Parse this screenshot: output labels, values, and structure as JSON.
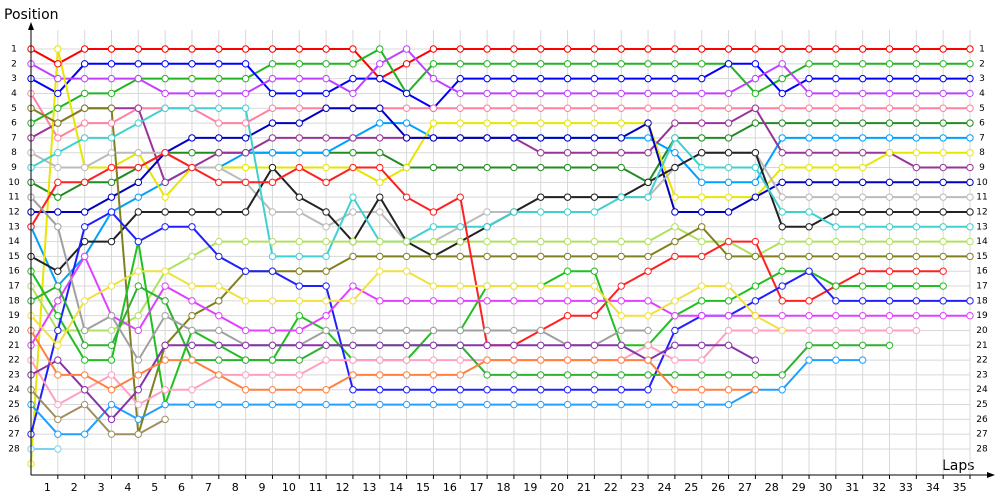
{
  "chart_data": {
    "type": "line",
    "xlabel": "Laps",
    "ylabel": "Position",
    "grid": true,
    "invert_y": true,
    "x": [
      0,
      1,
      2,
      3,
      4,
      5,
      6,
      7,
      8,
      9,
      10,
      11,
      12,
      13,
      14,
      15,
      16,
      17,
      18,
      19,
      20,
      21,
      22,
      23,
      24,
      25,
      26,
      27,
      28,
      29,
      30,
      31,
      32,
      33,
      34,
      35
    ],
    "xlim": [
      0,
      35
    ],
    "xticks": [
      1,
      2,
      3,
      4,
      5,
      6,
      7,
      8,
      9,
      10,
      11,
      12,
      13,
      14,
      15,
      16,
      17,
      18,
      19,
      20,
      21,
      22,
      23,
      24,
      25,
      26,
      27,
      28,
      29,
      30,
      31,
      32,
      33,
      34,
      35
    ],
    "ylim": [
      0,
      29.7
    ],
    "yticks": [
      1,
      2,
      3,
      4,
      5,
      6,
      7,
      8,
      9,
      10,
      11,
      12,
      13,
      14,
      15,
      16,
      17,
      18,
      19,
      20,
      21,
      22,
      23,
      24,
      25,
      26,
      27,
      28
    ],
    "series": [
      {
        "color": "#ff0000",
        "values": [
          1,
          2,
          1,
          1,
          1,
          1,
          1,
          1,
          1,
          1,
          1,
          1,
          1,
          3,
          2,
          1,
          1,
          1,
          1,
          1,
          1,
          1,
          1,
          1,
          1,
          1,
          1,
          1,
          1,
          1,
          1,
          1,
          1,
          1,
          1,
          1
        ]
      },
      {
        "color": "#22b422",
        "values": [
          6,
          5,
          4,
          4,
          3,
          3,
          3,
          3,
          3,
          2,
          2,
          2,
          2,
          1,
          4,
          2,
          2,
          2,
          2,
          2,
          2,
          2,
          2,
          2,
          2,
          2,
          2,
          4,
          3,
          2,
          2,
          2,
          2,
          2,
          2,
          2
        ]
      },
      {
        "color": "#0000ff",
        "values": [
          3,
          4,
          2,
          2,
          2,
          2,
          2,
          2,
          2,
          4,
          4,
          4,
          3,
          3,
          4,
          5,
          3,
          3,
          3,
          3,
          3,
          3,
          3,
          3,
          3,
          3,
          2,
          2,
          4,
          3,
          3,
          3,
          3,
          3,
          3,
          3
        ]
      },
      {
        "color": "#c040ff",
        "values": [
          2,
          3,
          3,
          3,
          3,
          4,
          4,
          4,
          4,
          3,
          3,
          3,
          4,
          2,
          1,
          3,
          4,
          4,
          4,
          4,
          4,
          4,
          4,
          4,
          4,
          4,
          4,
          3,
          2,
          4,
          4,
          4,
          4,
          4,
          4,
          4
        ]
      },
      {
        "color": "#ff80a0",
        "values": [
          4,
          7,
          6,
          6,
          5,
          5,
          5,
          6,
          6,
          5,
          5,
          5,
          5,
          5,
          5,
          5,
          5,
          5,
          5,
          5,
          5,
          5,
          5,
          5,
          5,
          5,
          5,
          5,
          5,
          5,
          5,
          5,
          5,
          5,
          5,
          5
        ]
      },
      {
        "color": "#228b22",
        "values": [
          10,
          11,
          10,
          10,
          9,
          8,
          8,
          8,
          8,
          8,
          8,
          8,
          8,
          8,
          9,
          9,
          9,
          9,
          9,
          9,
          9,
          9,
          9,
          10,
          7,
          7,
          7,
          6,
          6,
          6,
          6,
          6,
          6,
          6,
          6,
          6
        ]
      },
      {
        "color": "#00a0ff",
        "values": [
          13,
          17,
          15,
          12,
          11,
          10,
          9,
          9,
          8,
          8,
          8,
          8,
          7,
          6,
          6,
          7,
          7,
          7,
          7,
          7,
          7,
          7,
          7,
          7,
          8,
          10,
          10,
          10,
          7,
          7,
          7,
          7,
          7,
          7,
          7,
          7
        ]
      },
      {
        "color": "#993399",
        "values": [
          7,
          6,
          5,
          5,
          5,
          10,
          9,
          8,
          8,
          7,
          7,
          7,
          7,
          7,
          7,
          7,
          7,
          7,
          7,
          8,
          8,
          8,
          8,
          8,
          6,
          6,
          6,
          5,
          8,
          8,
          8,
          8,
          8,
          9,
          9,
          9
        ]
      },
      {
        "color": "#e6e600",
        "values": [
          29,
          1,
          9,
          9,
          8,
          11,
          9,
          9,
          9,
          9,
          9,
          9,
          9,
          10,
          9,
          6,
          6,
          6,
          6,
          6,
          6,
          6,
          6,
          6,
          11,
          11,
          11,
          11,
          9,
          9,
          9,
          9,
          8,
          8,
          8,
          8
        ]
      },
      {
        "color": "#0000c0",
        "values": [
          12,
          12,
          12,
          11,
          10,
          8,
          7,
          7,
          7,
          6,
          6,
          5,
          5,
          5,
          7,
          7,
          7,
          7,
          7,
          7,
          7,
          7,
          7,
          6,
          12,
          12,
          12,
          11,
          10,
          10,
          10,
          10,
          10,
          10,
          10,
          10
        ]
      },
      {
        "color": "#bbbbbb",
        "values": [
          8,
          9,
          9,
          8,
          8,
          8,
          9,
          9,
          10,
          12,
          12,
          13,
          12,
          12,
          14,
          14,
          13,
          12,
          12,
          11,
          11,
          11,
          11,
          11,
          9,
          8,
          8,
          8,
          11,
          11,
          11,
          11,
          11,
          11,
          11,
          11
        ]
      },
      {
        "color": "#222222",
        "values": [
          15,
          16,
          14,
          14,
          12,
          12,
          12,
          12,
          12,
          9,
          11,
          12,
          14,
          11,
          14,
          15,
          14,
          13,
          12,
          11,
          11,
          11,
          11,
          10,
          9,
          8,
          8,
          8,
          13,
          13,
          12,
          12,
          12,
          12,
          12,
          12
        ]
      },
      {
        "color": "#40d0d0",
        "values": [
          9,
          8,
          7,
          7,
          6,
          5,
          5,
          5,
          5,
          15,
          15,
          15,
          11,
          14,
          14,
          13,
          13,
          13,
          12,
          12,
          12,
          12,
          11,
          11,
          7,
          9,
          9,
          9,
          12,
          12,
          13,
          13,
          13,
          13,
          13,
          13
        ]
      },
      {
        "color": "#b0e060",
        "values": [
          17,
          20,
          20,
          20,
          19,
          16,
          15,
          14,
          14,
          14,
          14,
          14,
          14,
          14,
          14,
          14,
          14,
          14,
          14,
          14,
          14,
          14,
          14,
          14,
          13,
          14,
          14,
          15,
          14,
          14,
          14,
          14,
          14,
          14,
          14,
          14
        ]
      },
      {
        "color": "#808020",
        "values": [
          5,
          6,
          5,
          5,
          27,
          21,
          19,
          18,
          16,
          16,
          16,
          16,
          15,
          15,
          15,
          15,
          15,
          15,
          15,
          15,
          15,
          15,
          15,
          15,
          14,
          13,
          15,
          15,
          15,
          15,
          15,
          15,
          15,
          15,
          15,
          15
        ]
      },
      {
        "color": "#ff2020",
        "values": [
          13,
          10,
          10,
          9,
          9,
          8,
          9,
          10,
          10,
          10,
          9,
          10,
          9,
          9,
          11,
          12,
          11,
          21,
          21,
          20,
          19,
          19,
          17,
          16,
          15,
          15,
          14,
          14,
          18,
          18,
          17,
          16,
          16,
          16,
          16,
          null
        ]
      },
      {
        "color": "#20c020",
        "values": [
          16,
          19,
          22,
          22,
          14,
          25,
          20,
          21,
          22,
          22,
          19,
          20,
          22,
          22,
          22,
          20,
          20,
          17,
          17,
          17,
          16,
          16,
          21,
          21,
          19,
          18,
          18,
          17,
          16,
          16,
          17,
          17,
          17,
          17,
          17,
          null
        ]
      },
      {
        "color": "#2020ff",
        "values": [
          27,
          20,
          13,
          12,
          14,
          13,
          13,
          15,
          16,
          16,
          17,
          17,
          24,
          24,
          24,
          24,
          24,
          24,
          24,
          24,
          24,
          24,
          24,
          24,
          20,
          19,
          19,
          18,
          17,
          16,
          18,
          18,
          18,
          18,
          18,
          18
        ]
      },
      {
        "color": "#e040ff",
        "values": [
          21,
          18,
          15,
          19,
          20,
          17,
          18,
          19,
          20,
          20,
          20,
          19,
          17,
          18,
          18,
          18,
          18,
          18,
          18,
          18,
          18,
          18,
          18,
          18,
          19,
          19,
          19,
          19,
          19,
          19,
          19,
          19,
          19,
          19,
          19,
          19
        ]
      },
      {
        "color": "#ffa0c0",
        "values": [
          22,
          25,
          24,
          23,
          25,
          24,
          24,
          23,
          23,
          23,
          23,
          22,
          22,
          22,
          22,
          22,
          22,
          22,
          22,
          22,
          22,
          22,
          22,
          21,
          22,
          22,
          20,
          20,
          20,
          20,
          20,
          20,
          20,
          20,
          null,
          null
        ]
      },
      {
        "color": "#30b030",
        "values": [
          18,
          17,
          21,
          21,
          17,
          18,
          22,
          22,
          22,
          22,
          22,
          21,
          21,
          21,
          21,
          21,
          21,
          23,
          23,
          23,
          23,
          23,
          23,
          23,
          23,
          23,
          23,
          23,
          23,
          21,
          21,
          21,
          21,
          null,
          null,
          null
        ]
      },
      {
        "color": "#20a0ff",
        "values": [
          25,
          27,
          27,
          25,
          26,
          25,
          25,
          25,
          25,
          25,
          25,
          25,
          25,
          25,
          25,
          25,
          25,
          25,
          25,
          25,
          25,
          25,
          25,
          25,
          25,
          25,
          25,
          24,
          24,
          22,
          22,
          22,
          null,
          null,
          null,
          null
        ]
      },
      {
        "color": "#a0a0a0",
        "values": [
          11,
          13,
          20,
          19,
          22,
          19,
          20,
          20,
          21,
          21,
          21,
          20,
          20,
          20,
          20,
          20,
          20,
          20,
          20,
          20,
          21,
          21,
          20,
          20,
          null,
          null,
          null,
          null,
          null,
          null,
          null,
          null,
          null,
          null,
          null,
          null
        ]
      },
      {
        "color": "#8833aa",
        "values": [
          23,
          22,
          24,
          26,
          24,
          21,
          21,
          21,
          21,
          21,
          21,
          21,
          21,
          21,
          21,
          21,
          21,
          21,
          21,
          21,
          21,
          21,
          21,
          22,
          21,
          21,
          21,
          22,
          null,
          null,
          null,
          null,
          null,
          null,
          null,
          null
        ]
      },
      {
        "color": "#f0e040",
        "values": [
          19,
          21,
          18,
          17,
          16,
          16,
          17,
          17,
          18,
          18,
          18,
          18,
          18,
          16,
          16,
          17,
          17,
          17,
          17,
          17,
          17,
          17,
          19,
          19,
          18,
          17,
          17,
          19,
          20,
          null,
          null,
          null,
          null,
          null,
          null,
          null
        ]
      },
      {
        "color": "#a09060",
        "values": [
          24,
          26,
          25,
          27,
          27,
          26,
          null,
          null,
          null,
          null,
          null,
          null,
          null,
          null,
          null,
          null,
          null,
          null,
          null,
          null,
          null,
          null,
          null,
          null,
          null,
          null,
          null,
          null,
          null,
          null,
          null,
          null,
          null,
          null,
          null,
          null
        ]
      },
      {
        "color": "#80d0f0",
        "values": [
          28,
          28,
          null,
          null,
          null,
          null,
          null,
          null,
          null,
          null,
          null,
          null,
          null,
          null,
          null,
          null,
          null,
          null,
          null,
          null,
          null,
          null,
          null,
          null,
          null,
          null,
          null,
          null,
          null,
          null,
          null,
          null,
          null,
          null,
          null,
          null
        ]
      },
      {
        "color": "#ff8040",
        "values": [
          20,
          23,
          23,
          24,
          23,
          22,
          22,
          23,
          24,
          24,
          24,
          24,
          23,
          23,
          23,
          23,
          23,
          22,
          22,
          22,
          22,
          22,
          22,
          22,
          24,
          24,
          24,
          24,
          null,
          null,
          null,
          null,
          null,
          null,
          null,
          null
        ]
      }
    ]
  }
}
